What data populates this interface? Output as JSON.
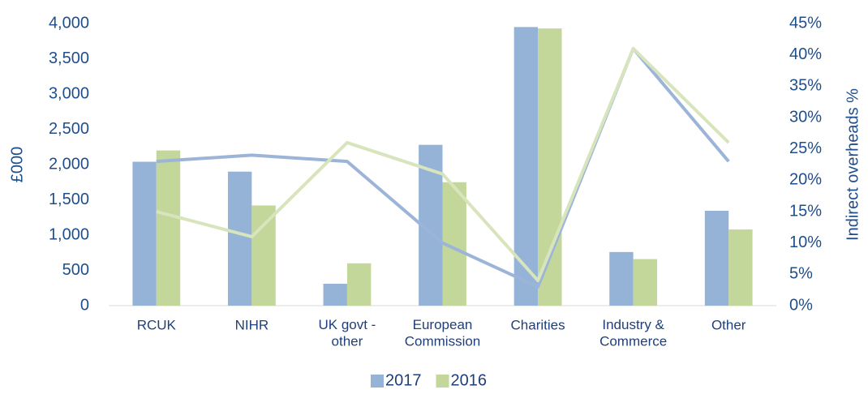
{
  "chart_data": {
    "type": "bar",
    "categories": [
      "RCUK",
      "NIHR",
      "UK govt -\nother",
      "European\nCommission",
      "Charities",
      "Industry &\nCommerce",
      "Other"
    ],
    "ylabel": "£000",
    "y2label": "Indirect overheads %",
    "ylim": [
      0,
      4000
    ],
    "yticks": [
      0,
      500,
      {
        "value": 1000,
        "label": "1,000"
      },
      {
        "value": 1500,
        "label": "1,500"
      },
      {
        "value": 2000,
        "label": "2,000"
      },
      {
        "value": 2500,
        "label": "2,500"
      },
      {
        "value": 3000,
        "label": "3,000"
      },
      {
        "value": 3500,
        "label": "3,500"
      },
      {
        "value": 4000,
        "label": "4,000"
      }
    ],
    "y2lim": [
      0,
      45
    ],
    "y2ticks": [
      {
        "value": 0,
        "label": "0%"
      },
      {
        "value": 5,
        "label": "5%"
      },
      {
        "value": 10,
        "label": "10%"
      },
      {
        "value": 15,
        "label": "15%"
      },
      {
        "value": 20,
        "label": "20%"
      },
      {
        "value": 25,
        "label": "25%"
      },
      {
        "value": 30,
        "label": "30%"
      },
      {
        "value": 35,
        "label": "35%"
      },
      {
        "value": 40,
        "label": "40%"
      },
      {
        "value": 45,
        "label": "45%"
      }
    ],
    "legend": "bottom",
    "series": [
      {
        "name": "2017",
        "color": "#95b3d7",
        "values": [
          2040,
          1900,
          310,
          2280,
          3950,
          760,
          1345
        ]
      },
      {
        "name": "2016",
        "color": "#c4d79b",
        "values": [
          2200,
          1420,
          600,
          1750,
          3930,
          660,
          1080
        ]
      },
      {
        "type": "line",
        "axis": "y2",
        "color": "#9cb4d8",
        "values": [
          23,
          24,
          23,
          10,
          3,
          41,
          23
        ]
      },
      {
        "type": "line",
        "axis": "y2",
        "color": "#d7e4bc",
        "values": [
          15,
          11,
          26,
          21,
          4,
          41,
          26
        ]
      }
    ]
  }
}
